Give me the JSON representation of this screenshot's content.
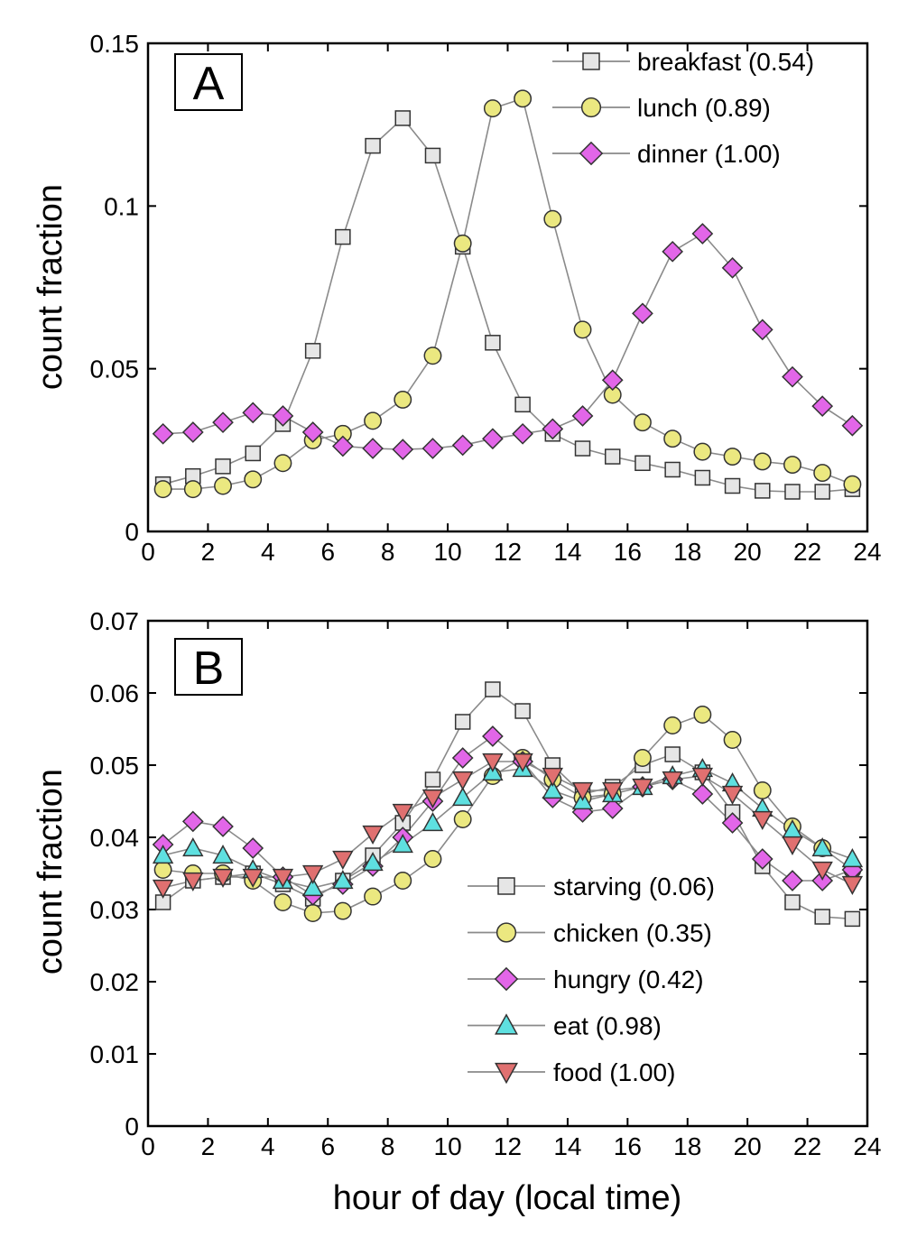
{
  "figure": {
    "xlabel": "hour of day (local time)"
  },
  "chart_data": [
    {
      "type": "line",
      "panel_label": "A",
      "title": "",
      "ylabel": "count fraction",
      "xlim": [
        0,
        24
      ],
      "ylim": [
        0,
        0.15
      ],
      "xticks": [
        "0",
        "2",
        "4",
        "6",
        "8",
        "10",
        "12",
        "14",
        "16",
        "18",
        "20",
        "22",
        "24"
      ],
      "yticks": [
        "0",
        "0.05",
        "0.1",
        "0.15"
      ],
      "ytick_values": [
        0,
        0.05,
        0.1,
        0.15
      ],
      "legend_position": "top-right",
      "x": [
        0.5,
        1.5,
        2.5,
        3.5,
        4.5,
        5.5,
        6.5,
        7.5,
        8.5,
        9.5,
        10.5,
        11.5,
        12.5,
        13.5,
        14.5,
        15.5,
        16.5,
        17.5,
        18.5,
        19.5,
        20.5,
        21.5,
        22.5,
        23.5
      ],
      "series": [
        {
          "name": "breakfast (0.54)",
          "marker": "square",
          "color": "#e6e6e6",
          "values": [
            0.0145,
            0.017,
            0.02,
            0.024,
            0.033,
            0.0555,
            0.0905,
            0.1185,
            0.127,
            0.1155,
            0.0875,
            0.058,
            0.039,
            0.03,
            0.0255,
            0.023,
            0.021,
            0.019,
            0.0165,
            0.014,
            0.0125,
            0.0122,
            0.0122,
            0.013
          ]
        },
        {
          "name": "lunch (0.89)",
          "marker": "circle",
          "color": "#ebe880",
          "values": [
            0.013,
            0.013,
            0.014,
            0.016,
            0.021,
            0.028,
            0.03,
            0.034,
            0.0405,
            0.054,
            0.0885,
            0.13,
            0.133,
            0.096,
            0.062,
            0.042,
            0.0335,
            0.0285,
            0.0245,
            0.023,
            0.0215,
            0.0205,
            0.018,
            0.0145
          ]
        },
        {
          "name": "dinner (1.00)",
          "marker": "diamond",
          "color": "#e266e8",
          "values": [
            0.03,
            0.0305,
            0.0335,
            0.0365,
            0.0355,
            0.0305,
            0.0262,
            0.0255,
            0.0252,
            0.0255,
            0.0265,
            0.0285,
            0.03,
            0.0315,
            0.0355,
            0.0465,
            0.067,
            0.086,
            0.0915,
            0.081,
            0.062,
            0.0475,
            0.0385,
            0.0325
          ]
        }
      ]
    },
    {
      "type": "line",
      "panel_label": "B",
      "title": "",
      "ylabel": "count fraction",
      "xlabel": "hour of day (local time)",
      "xlim": [
        0,
        24
      ],
      "ylim": [
        0,
        0.07
      ],
      "xticks": [
        "0",
        "2",
        "4",
        "6",
        "8",
        "10",
        "12",
        "14",
        "16",
        "18",
        "20",
        "22",
        "24"
      ],
      "yticks": [
        "0",
        "0.01",
        "0.02",
        "0.03",
        "0.04",
        "0.05",
        "0.06",
        "0.07"
      ],
      "ytick_values": [
        0,
        0.01,
        0.02,
        0.03,
        0.04,
        0.05,
        0.06,
        0.07
      ],
      "legend_position": "bottom-right",
      "x": [
        0.5,
        1.5,
        2.5,
        3.5,
        4.5,
        5.5,
        6.5,
        7.5,
        8.5,
        9.5,
        10.5,
        11.5,
        12.5,
        13.5,
        14.5,
        15.5,
        16.5,
        17.5,
        18.5,
        19.5,
        20.5,
        21.5,
        22.5,
        23.5
      ],
      "series": [
        {
          "name": "starving (0.06)",
          "marker": "square",
          "color": "#e6e6e6",
          "values": [
            0.031,
            0.034,
            0.0345,
            0.035,
            0.0335,
            0.0315,
            0.034,
            0.0375,
            0.042,
            0.048,
            0.056,
            0.0605,
            0.0575,
            0.05,
            0.046,
            0.047,
            0.05,
            0.0515,
            0.049,
            0.0435,
            0.036,
            0.031,
            0.029,
            0.0287
          ]
        },
        {
          "name": "chicken (0.35)",
          "marker": "circle",
          "color": "#ebe880",
          "values": [
            0.0355,
            0.035,
            0.035,
            0.034,
            0.031,
            0.0295,
            0.0298,
            0.0318,
            0.034,
            0.037,
            0.0425,
            0.0485,
            0.051,
            0.048,
            0.0455,
            0.046,
            0.051,
            0.0555,
            0.057,
            0.0535,
            0.0465,
            0.0415,
            0.0385,
            0.0355
          ]
        },
        {
          "name": "hungry (0.42)",
          "marker": "diamond",
          "color": "#e266e8",
          "values": [
            0.039,
            0.0422,
            0.0415,
            0.0385,
            0.0345,
            0.032,
            0.0335,
            0.036,
            0.04,
            0.045,
            0.051,
            0.054,
            0.0505,
            0.0455,
            0.0435,
            0.044,
            0.047,
            0.048,
            0.046,
            0.042,
            0.037,
            0.034,
            0.034,
            0.0355
          ]
        },
        {
          "name": "eat (0.98)",
          "marker": "triangle-up",
          "color": "#5ee0e0",
          "values": [
            0.0375,
            0.0385,
            0.0375,
            0.0355,
            0.034,
            0.033,
            0.034,
            0.0365,
            0.039,
            0.042,
            0.0455,
            0.049,
            0.0495,
            0.0465,
            0.045,
            0.046,
            0.047,
            0.0485,
            0.0495,
            0.0475,
            0.044,
            0.041,
            0.0385,
            0.037
          ]
        },
        {
          "name": "food (1.00)",
          "marker": "triangle-down",
          "color": "#e07070",
          "values": [
            0.033,
            0.034,
            0.0345,
            0.0345,
            0.0345,
            0.035,
            0.037,
            0.0405,
            0.0435,
            0.0455,
            0.048,
            0.0505,
            0.0505,
            0.0485,
            0.0465,
            0.0465,
            0.047,
            0.048,
            0.0485,
            0.046,
            0.0425,
            0.039,
            0.0355,
            0.0335
          ]
        }
      ]
    }
  ]
}
